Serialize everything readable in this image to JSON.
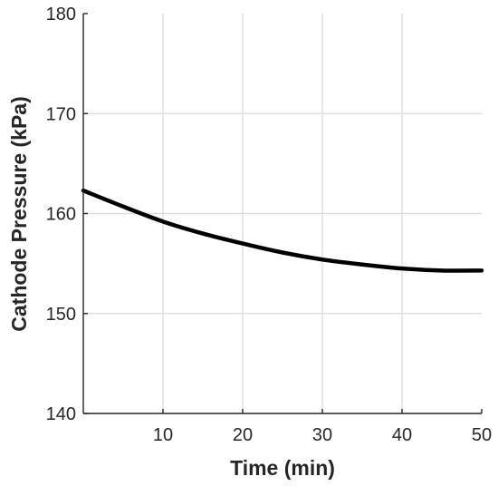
{
  "chart_data": {
    "type": "line",
    "title": "",
    "xlabel": "Time (min)",
    "ylabel": "Cathode Pressure (kPa)",
    "xlim": [
      0,
      50
    ],
    "ylim": [
      140,
      180
    ],
    "xticks": [
      10,
      20,
      30,
      40,
      50
    ],
    "yticks": [
      140,
      150,
      160,
      170,
      180
    ],
    "grid": true,
    "legend": "none",
    "series": [
      {
        "color": "#000000",
        "x": [
          0,
          5,
          10,
          15,
          20,
          25,
          30,
          35,
          40,
          45,
          50
        ],
        "y": [
          162.3,
          160.7,
          159.2,
          158.0,
          157.0,
          156.1,
          155.4,
          154.9,
          154.5,
          154.3,
          154.3
        ]
      }
    ]
  }
}
